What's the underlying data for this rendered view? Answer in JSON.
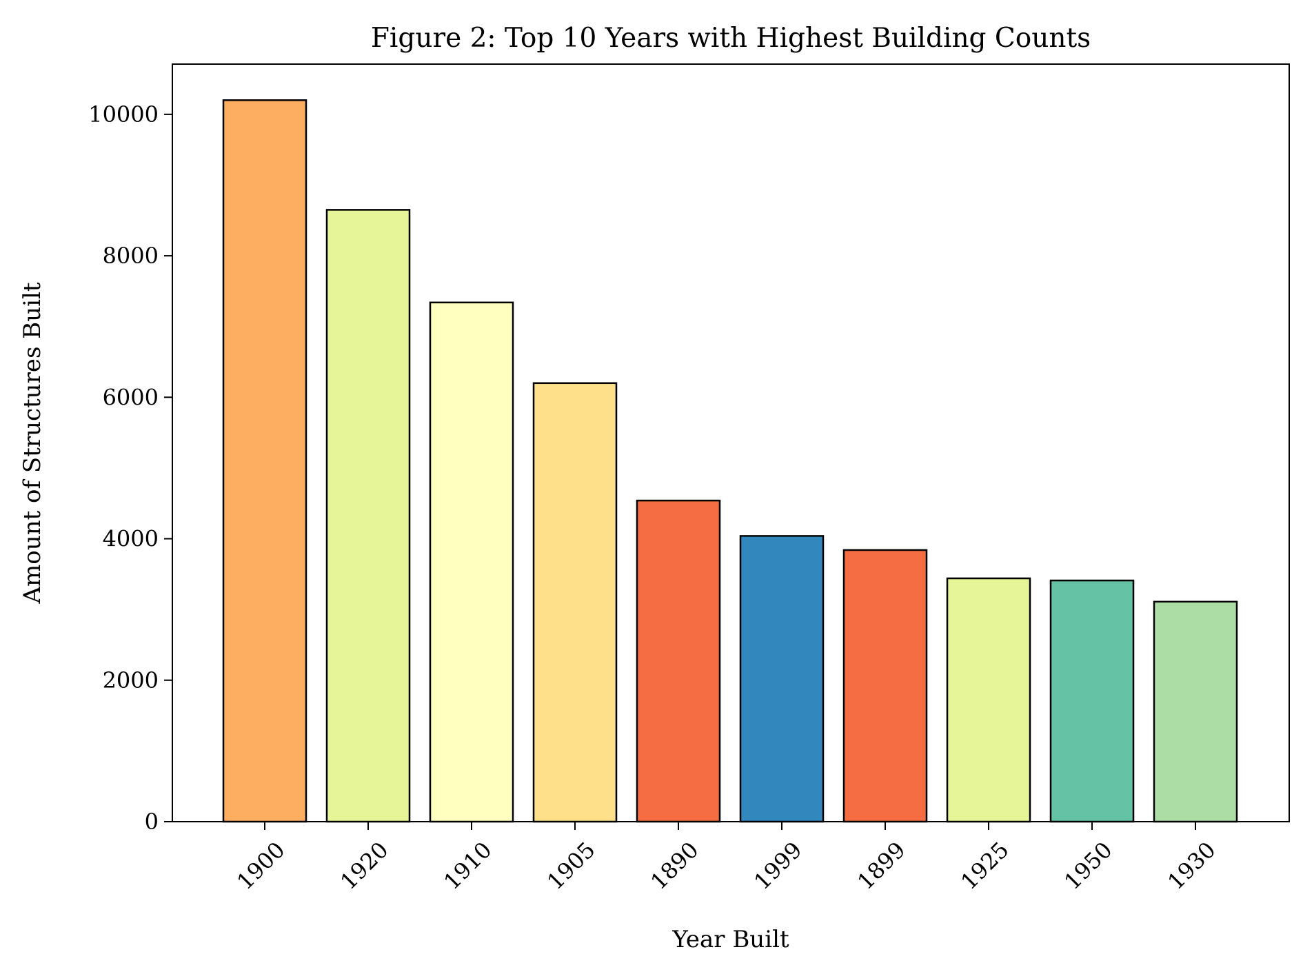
{
  "chart_data": {
    "type": "bar",
    "title": "Figure 2: Top 10 Years with Highest Building Counts",
    "xlabel": "Year Built",
    "ylabel": "Amount of Structures Built",
    "categories": [
      "1900",
      "1920",
      "1910",
      "1905",
      "1890",
      "1999",
      "1899",
      "1925",
      "1950",
      "1930"
    ],
    "values": [
      10200,
      8650,
      7340,
      6200,
      4540,
      4040,
      3840,
      3440,
      3410,
      3110
    ],
    "colors": [
      "#fdae61",
      "#e6f598",
      "#ffffbf",
      "#fee08b",
      "#f46d43",
      "#3288bd",
      "#f46d43",
      "#e6f598",
      "#66c2a5",
      "#abdda4"
    ],
    "yticks": [
      0,
      2000,
      4000,
      6000,
      8000,
      10000
    ],
    "ylim": [
      0,
      10710
    ],
    "grid": false,
    "legend": false
  }
}
